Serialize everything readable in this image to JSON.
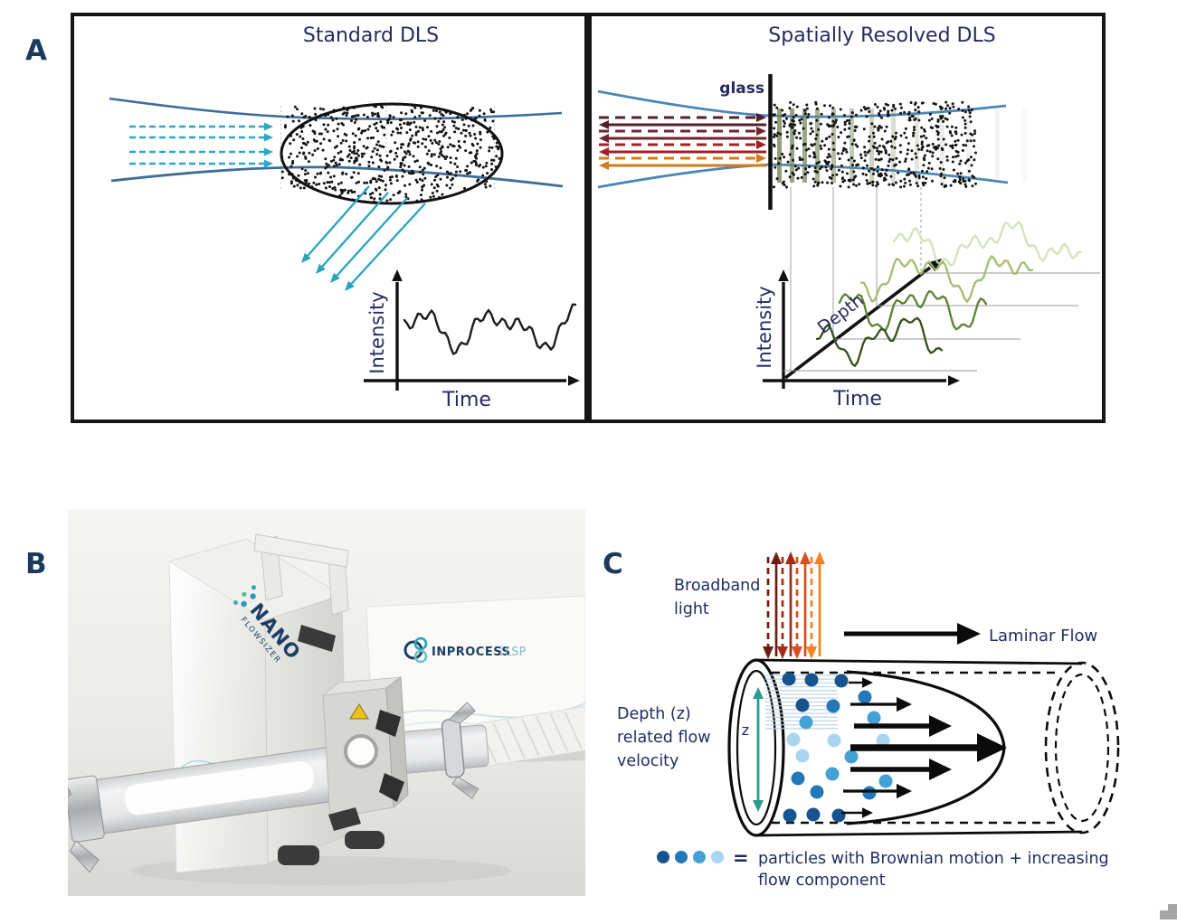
{
  "panel_a": {
    "label": "A",
    "left": {
      "title": "Standard DLS",
      "ylabel": "Intensity",
      "xlabel": "Time"
    },
    "right": {
      "title": "Spatially Resolved DLS",
      "glass": "glass",
      "ylabel": "Intensity",
      "xlabel": "Time",
      "depth": "Depth"
    }
  },
  "panel_b": {
    "label": "B",
    "probe_logo": {
      "line1": "NANO",
      "line2": "FLOWSIZER"
    },
    "console_logo": {
      "name": "INPROCESS",
      "suffix": "LSP"
    }
  },
  "panel_c": {
    "label": "C",
    "broadband": {
      "line1": "Broadband",
      "line2": "light"
    },
    "laminar_flow": "Laminar Flow",
    "depth": {
      "line1": "Depth (z)",
      "line2": "related flow",
      "line3": "velocity"
    },
    "z": "z",
    "equals": "=",
    "legend": {
      "line1": "particles with Brownian motion + increasing",
      "line2": "flow component"
    }
  },
  "colors": {
    "text_navy": "#232a5e",
    "label_navy": "#1c3a5c",
    "teal": "#2aa7c9",
    "beam_blue_left": "#3f6d99",
    "beam_blue_right": "#4c86b6",
    "incident_pairs": [
      "#552028",
      "#70252e",
      "#a02026",
      "#cf7e1f"
    ],
    "broadband_pairs": [
      "#6e1d12",
      "#a32d12",
      "#d64f1c",
      "#f08223"
    ],
    "trace_black": "#1c1c1c",
    "trace_greens": [
      "#344f1c",
      "#5e8132",
      "#9cba6b",
      "#cde0b2"
    ],
    "olive_bar": "#74855a",
    "z_teal": "#2a9d8f",
    "particle_blues": [
      "#17538f",
      "#2379b8",
      "#45a0d4",
      "#a9d6ef"
    ]
  }
}
